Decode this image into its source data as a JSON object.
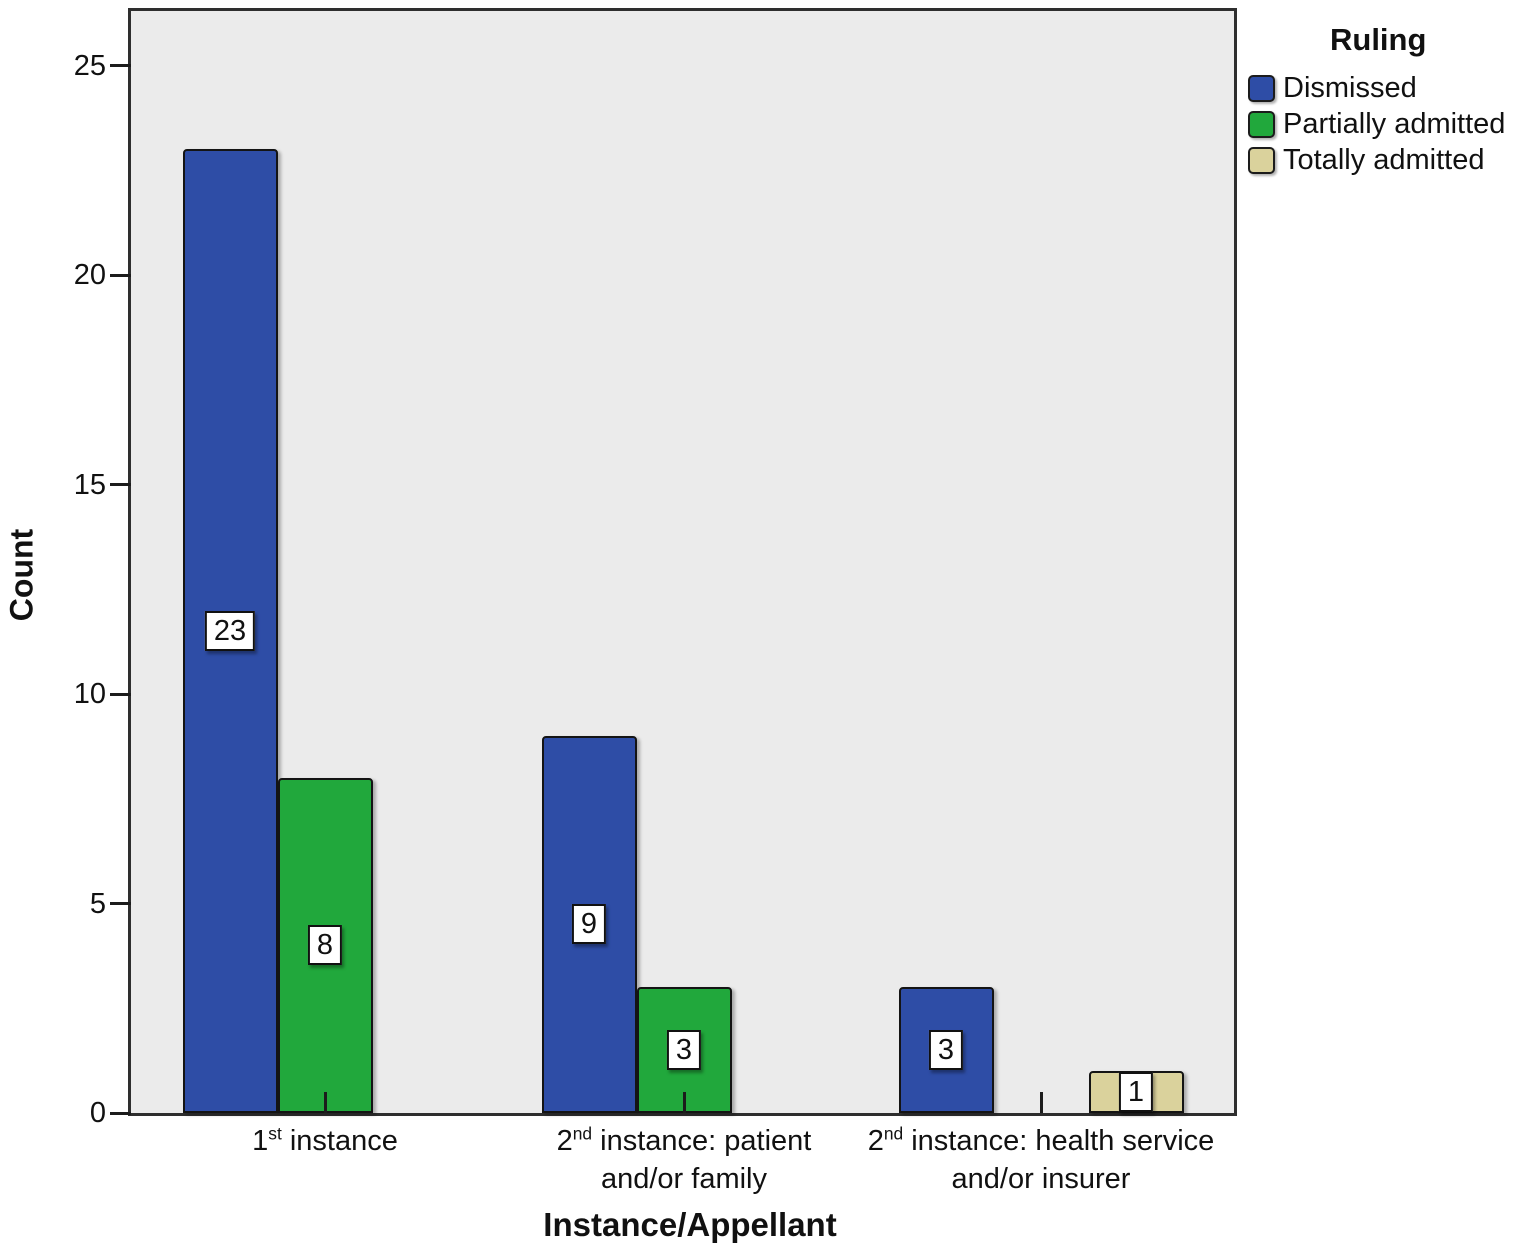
{
  "chart_data": {
    "type": "bar",
    "title": "",
    "xlabel": "Instance/Appellant",
    "ylabel": "Count",
    "legend_title": "Ruling",
    "legend_position": "top-right-outside",
    "grid": false,
    "ylim": [
      0,
      26.4
    ],
    "yticks": [
      0,
      5,
      10,
      15,
      20,
      25
    ],
    "categories": [
      "1[st] instance",
      "2[nd] instance: patient and/or family",
      "2[nd] instance: health service and/or insurer"
    ],
    "category_label_lines": [
      [
        "1[st] instance"
      ],
      [
        "2[nd] instance: patient",
        "and/or family"
      ],
      [
        "2[nd] instance: health service",
        "and/or insurer"
      ]
    ],
    "series": [
      {
        "name": "Dismissed",
        "color": "#2e4da6",
        "values": [
          23,
          9,
          3
        ]
      },
      {
        "name": "Partially admitted",
        "color": "#21a83c",
        "values": [
          8,
          3,
          0
        ]
      },
      {
        "name": "Totally admitted",
        "color": "#dad29c",
        "values": [
          0,
          0,
          1
        ]
      }
    ],
    "bar_value_labels": [
      {
        "category": 0,
        "series": 0,
        "label": "23"
      },
      {
        "category": 0,
        "series": 1,
        "label": "8"
      },
      {
        "category": 1,
        "series": 0,
        "label": "9"
      },
      {
        "category": 1,
        "series": 1,
        "label": "3"
      },
      {
        "category": 2,
        "series": 0,
        "label": "3"
      },
      {
        "category": 2,
        "series": 2,
        "label": "1"
      }
    ]
  },
  "colors": {
    "plot_bg": "#ebebeb",
    "frame": "#2e2e2e",
    "bar_border": "#141414",
    "tick": "#1c1c1c",
    "value_label_bg": "#ffffff",
    "value_label_border": "#111111",
    "text": "#111111",
    "page_bg": "#ffffff"
  }
}
